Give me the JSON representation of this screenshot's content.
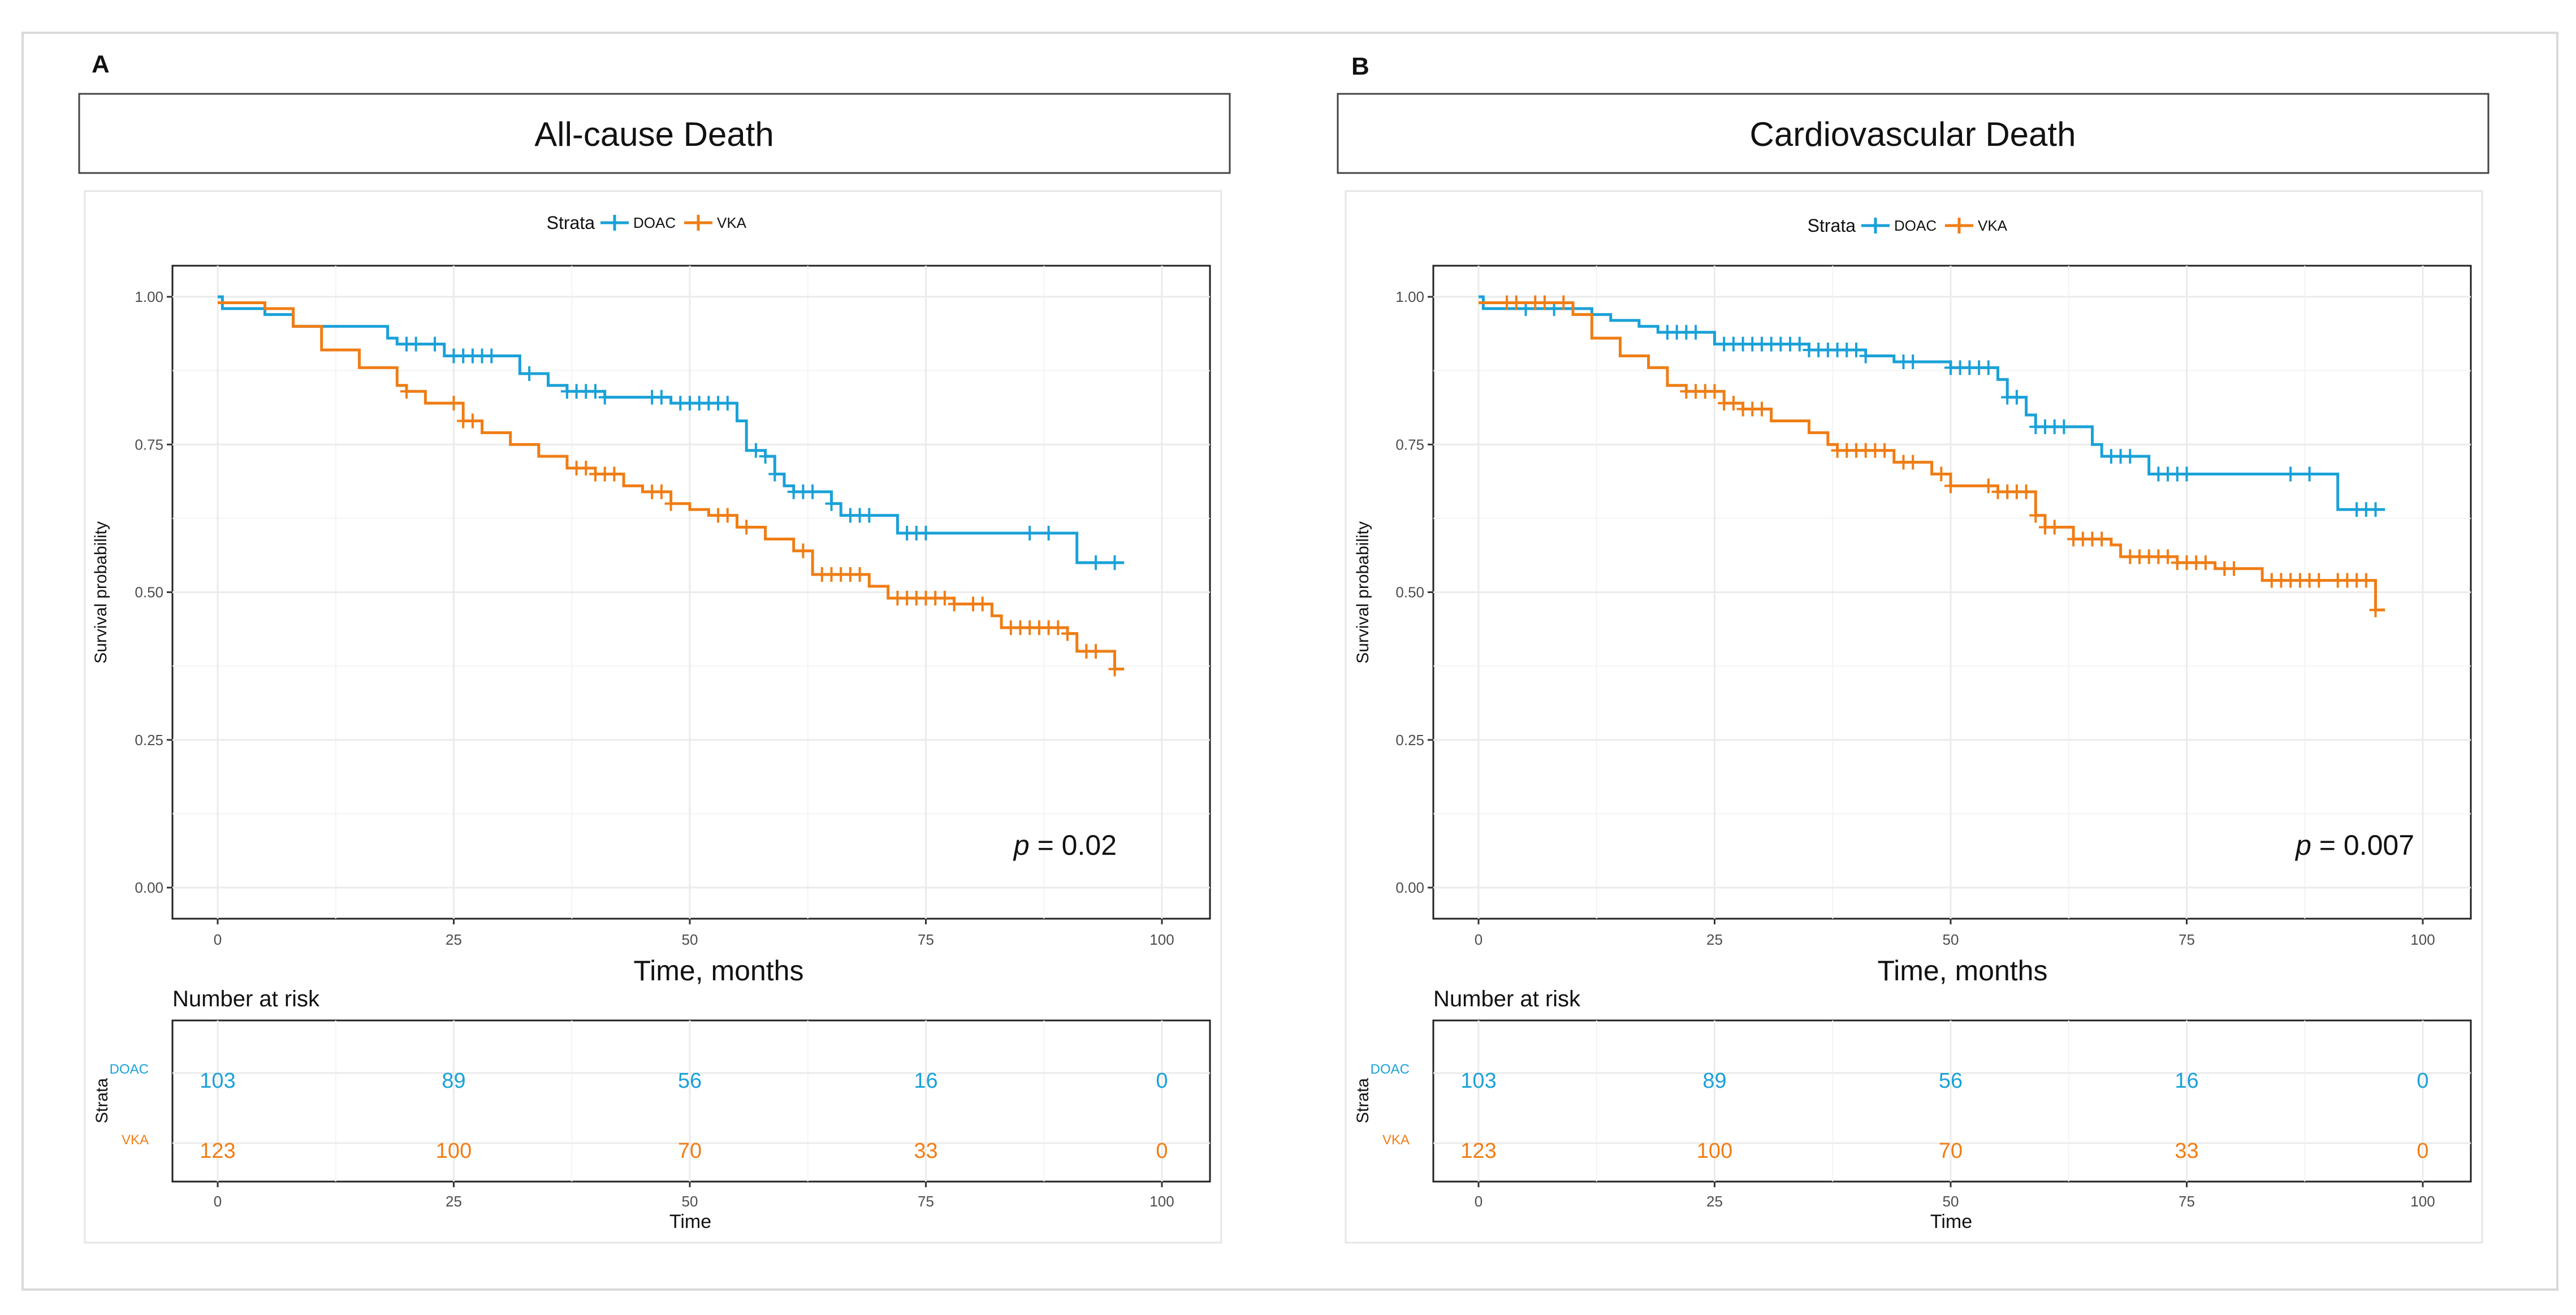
{
  "colors": {
    "doac": "#1aa1d8",
    "vka": "#f07d14",
    "axis_text": "#4d4d4d"
  },
  "chart_data": [
    {
      "type": "line",
      "panel": "A",
      "title": "All-cause Death",
      "xlabel": "Time, months",
      "ylabel": "Survival probability",
      "xlim": [
        0,
        100
      ],
      "ylim": [
        0,
        1
      ],
      "x_ticks": [
        "0",
        "25",
        "50",
        "75",
        "100"
      ],
      "y_ticks": [
        "0.00",
        "0.25",
        "0.50",
        "0.75",
        "1.00"
      ],
      "legend_title": "Strata",
      "p_label": "p",
      "p_value": " = 0.02",
      "series": [
        {
          "name": "DOAC",
          "color": "#1aa1d8",
          "steps": [
            [
              0,
              1.0
            ],
            [
              0.5,
              0.98
            ],
            [
              5,
              0.97
            ],
            [
              8,
              0.95
            ],
            [
              18,
              0.93
            ],
            [
              19,
              0.92
            ],
            [
              24,
              0.9
            ],
            [
              32,
              0.87
            ],
            [
              35,
              0.85
            ],
            [
              37,
              0.84
            ],
            [
              41,
              0.83
            ],
            [
              48,
              0.82
            ],
            [
              55,
              0.79
            ],
            [
              56,
              0.74
            ],
            [
              58,
              0.73
            ],
            [
              59,
              0.7
            ],
            [
              60,
              0.68
            ],
            [
              61,
              0.67
            ],
            [
              65,
              0.65
            ],
            [
              66,
              0.63
            ],
            [
              72,
              0.6
            ],
            [
              91,
              0.55
            ],
            [
              96,
              0.55
            ]
          ],
          "censors": [
            20,
            21,
            23,
            25,
            26,
            27,
            28,
            29,
            33,
            37,
            38,
            39,
            40,
            41,
            46,
            47,
            49,
            50,
            51,
            52,
            53,
            54,
            57,
            58,
            59,
            61,
            62,
            63,
            65,
            67,
            68,
            69,
            73,
            74,
            75,
            86,
            88,
            93,
            95
          ]
        },
        {
          "name": "VKA",
          "color": "#f07d14",
          "steps": [
            [
              0,
              0.99
            ],
            [
              5,
              0.98
            ],
            [
              8,
              0.95
            ],
            [
              11,
              0.91
            ],
            [
              15,
              0.88
            ],
            [
              19,
              0.85
            ],
            [
              20,
              0.84
            ],
            [
              22,
              0.82
            ],
            [
              26,
              0.79
            ],
            [
              28,
              0.77
            ],
            [
              31,
              0.75
            ],
            [
              34,
              0.73
            ],
            [
              37,
              0.71
            ],
            [
              40,
              0.7
            ],
            [
              43,
              0.68
            ],
            [
              45,
              0.67
            ],
            [
              48,
              0.65
            ],
            [
              50,
              0.64
            ],
            [
              52,
              0.63
            ],
            [
              55,
              0.61
            ],
            [
              58,
              0.59
            ],
            [
              61,
              0.57
            ],
            [
              63,
              0.53
            ],
            [
              69,
              0.51
            ],
            [
              71,
              0.49
            ],
            [
              78,
              0.48
            ],
            [
              82,
              0.46
            ],
            [
              83,
              0.44
            ],
            [
              90,
              0.43
            ],
            [
              91,
              0.4
            ],
            [
              95,
              0.37
            ],
            [
              96,
              0.37
            ]
          ],
          "censors": [
            20,
            25,
            26,
            27,
            38,
            39,
            40,
            41,
            42,
            46,
            47,
            48,
            53,
            54,
            56,
            62,
            64,
            65,
            66,
            67,
            68,
            72,
            73,
            74,
            75,
            76,
            77,
            78,
            80,
            81,
            84,
            85,
            86,
            87,
            88,
            89,
            90,
            92,
            93,
            95
          ]
        }
      ],
      "risk_table": {
        "title": "Number at risk",
        "ylabel": "Strata",
        "xlabel": "Time",
        "rows": [
          {
            "name": "DOAC",
            "values": [
              "103",
              "89",
              "56",
              "16",
              "0"
            ]
          },
          {
            "name": "VKA",
            "values": [
              "123",
              "100",
              "70",
              "33",
              "0"
            ]
          }
        ]
      }
    },
    {
      "type": "line",
      "panel": "B",
      "title": "Cardiovascular Death",
      "xlabel": "Time, months",
      "ylabel": "Survival probability",
      "xlim": [
        0,
        100
      ],
      "ylim": [
        0,
        1
      ],
      "x_ticks": [
        "0",
        "25",
        "50",
        "75",
        "100"
      ],
      "y_ticks": [
        "0.00",
        "0.25",
        "0.50",
        "0.75",
        "1.00"
      ],
      "legend_title": "Strata",
      "p_label": "p",
      "p_value": " = 0.007",
      "series": [
        {
          "name": "DOAC",
          "color": "#1aa1d8",
          "steps": [
            [
              0,
              1.0
            ],
            [
              0.5,
              0.98
            ],
            [
              12,
              0.97
            ],
            [
              14,
              0.96
            ],
            [
              17,
              0.95
            ],
            [
              19,
              0.94
            ],
            [
              25,
              0.92
            ],
            [
              35,
              0.91
            ],
            [
              41,
              0.9
            ],
            [
              44,
              0.89
            ],
            [
              50,
              0.88
            ],
            [
              55,
              0.86
            ],
            [
              56,
              0.83
            ],
            [
              58,
              0.8
            ],
            [
              59,
              0.78
            ],
            [
              65,
              0.75
            ],
            [
              66,
              0.73
            ],
            [
              71,
              0.7
            ],
            [
              91,
              0.64
            ],
            [
              96,
              0.64
            ]
          ],
          "censors": [
            5,
            8,
            20,
            21,
            22,
            23,
            26,
            27,
            28,
            29,
            30,
            31,
            32,
            33,
            34,
            35,
            36,
            37,
            38,
            39,
            40,
            41,
            45,
            46,
            50,
            51,
            52,
            53,
            54,
            56,
            57,
            59,
            60,
            61,
            62,
            67,
            68,
            69,
            72,
            73,
            74,
            75,
            86,
            88,
            93,
            94,
            95
          ]
        },
        {
          "name": "VKA",
          "color": "#f07d14",
          "steps": [
            [
              0,
              0.99
            ],
            [
              10,
              0.97
            ],
            [
              12,
              0.93
            ],
            [
              15,
              0.9
            ],
            [
              18,
              0.88
            ],
            [
              20,
              0.85
            ],
            [
              22,
              0.84
            ],
            [
              26,
              0.82
            ],
            [
              28,
              0.81
            ],
            [
              31,
              0.79
            ],
            [
              35,
              0.77
            ],
            [
              37,
              0.75
            ],
            [
              38,
              0.74
            ],
            [
              44,
              0.72
            ],
            [
              48,
              0.7
            ],
            [
              50,
              0.68
            ],
            [
              55,
              0.67
            ],
            [
              59,
              0.63
            ],
            [
              60,
              0.61
            ],
            [
              63,
              0.59
            ],
            [
              67,
              0.58
            ],
            [
              68,
              0.56
            ],
            [
              74,
              0.55
            ],
            [
              78,
              0.54
            ],
            [
              83,
              0.52
            ],
            [
              95,
              0.47
            ],
            [
              96,
              0.47
            ]
          ],
          "censors": [
            3,
            4,
            6,
            7,
            9,
            22,
            23,
            24,
            25,
            26,
            27,
            28,
            29,
            30,
            38,
            39,
            40,
            41,
            42,
            43,
            45,
            46,
            49,
            50,
            54,
            55,
            56,
            57,
            58,
            59,
            60,
            61,
            63,
            64,
            65,
            66,
            69,
            70,
            71,
            72,
            73,
            74,
            75,
            76,
            77,
            79,
            80,
            84,
            85,
            86,
            87,
            88,
            89,
            91,
            92,
            93,
            94,
            95
          ]
        }
      ],
      "risk_table": {
        "title": "Number at risk",
        "ylabel": "Strata",
        "xlabel": "Time",
        "rows": [
          {
            "name": "DOAC",
            "values": [
              "103",
              "89",
              "56",
              "16",
              "0"
            ]
          },
          {
            "name": "VKA",
            "values": [
              "123",
              "100",
              "70",
              "33",
              "0"
            ]
          }
        ]
      }
    }
  ]
}
